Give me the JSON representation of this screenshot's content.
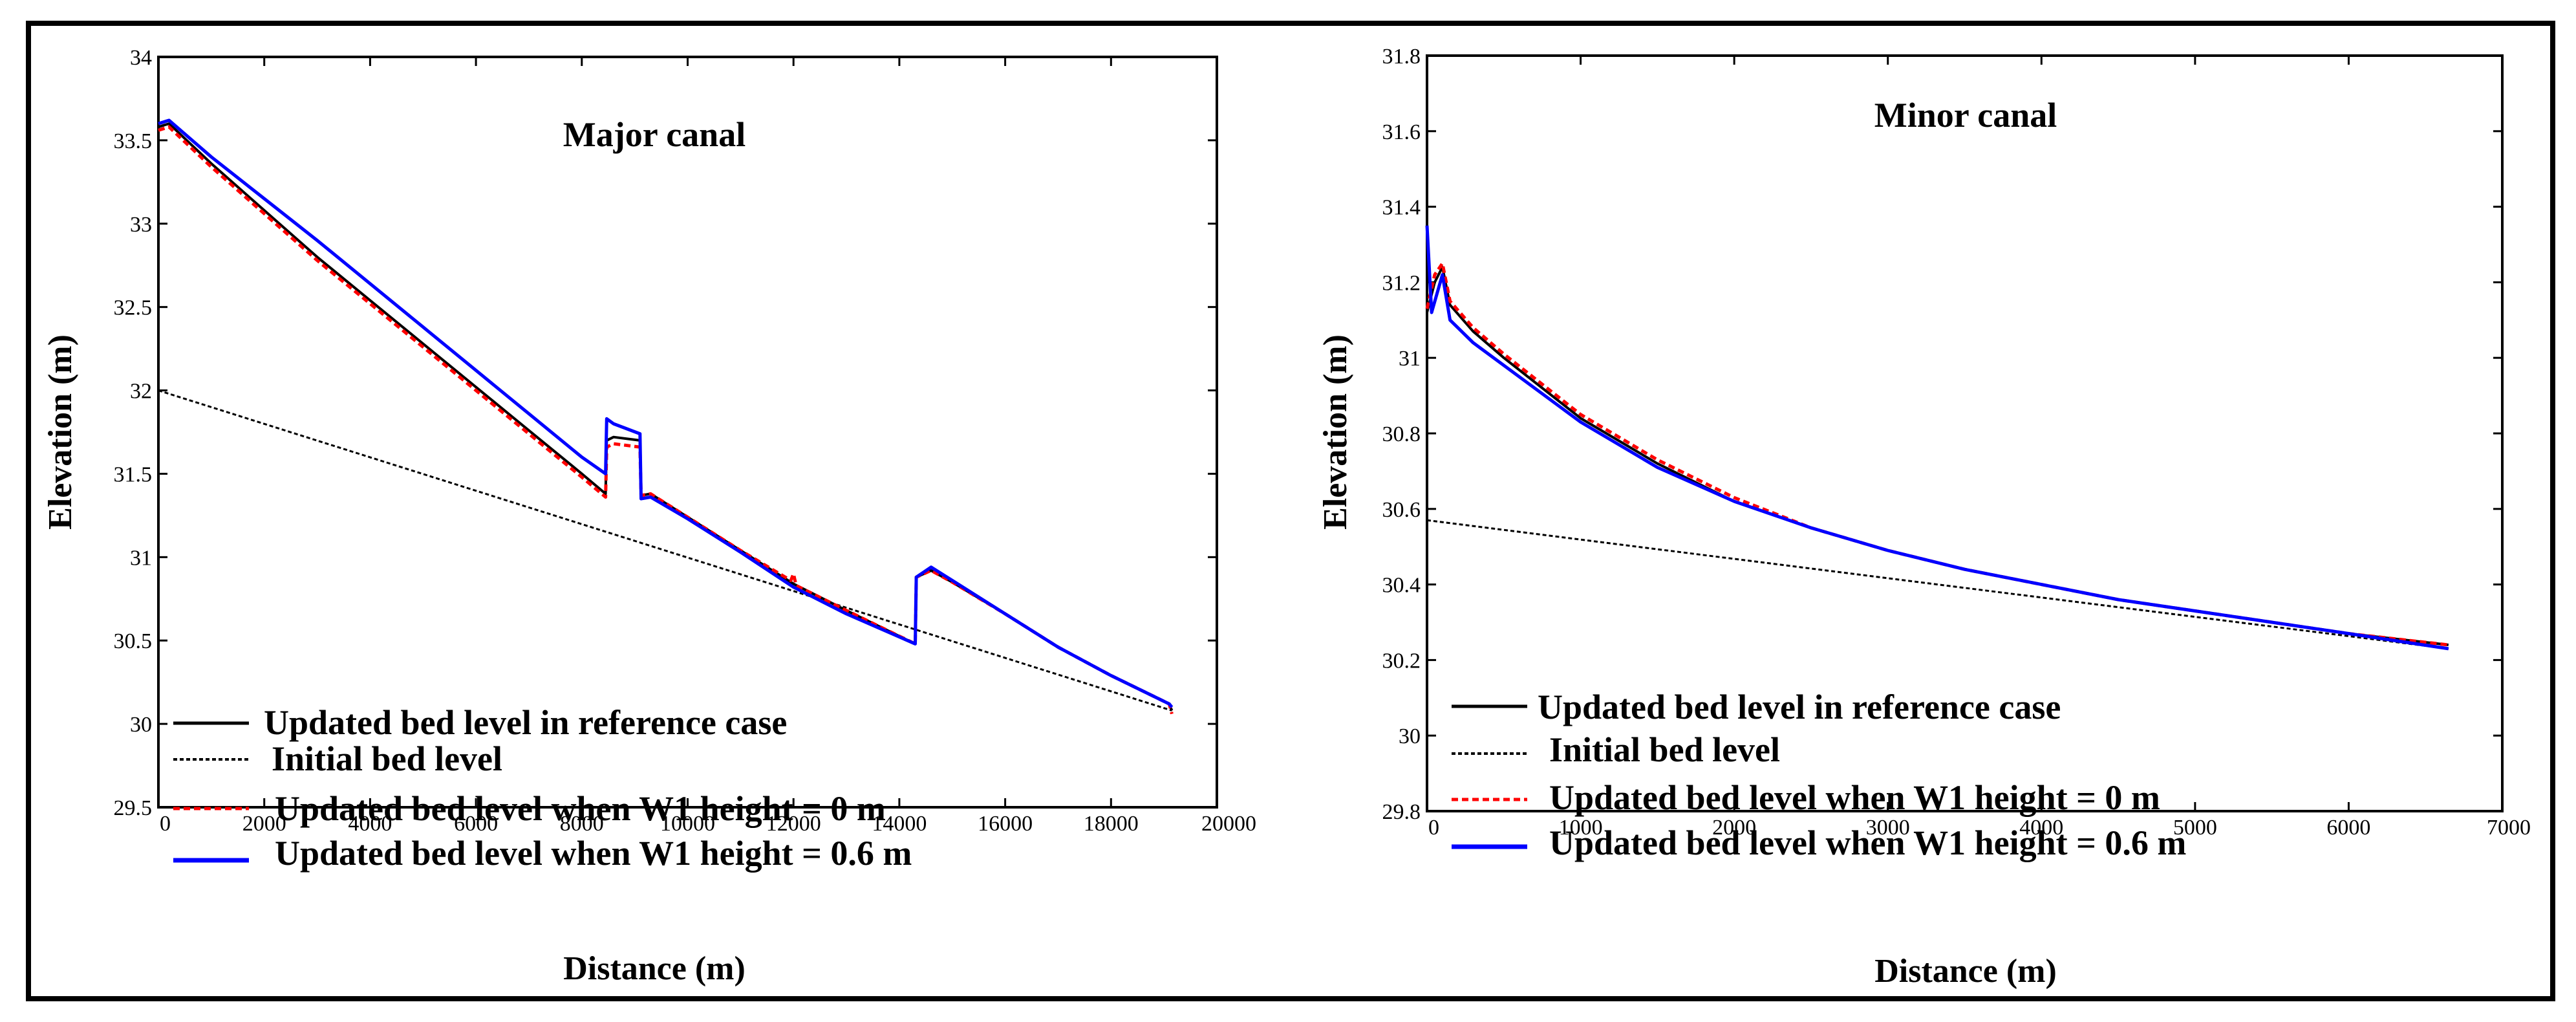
{
  "chart_data": [
    {
      "type": "line",
      "title": "Major canal",
      "xlabel": "Distance (m)",
      "ylabel": "Elevation (m)",
      "xlim": [
        0,
        20000
      ],
      "ylim": [
        29.5,
        34
      ],
      "xticks": [
        0,
        2000,
        4000,
        6000,
        8000,
        10000,
        12000,
        14000,
        16000,
        18000,
        20000
      ],
      "yticks": [
        29.5,
        30,
        30.5,
        31,
        31.5,
        32,
        32.5,
        33,
        33.5,
        34
      ],
      "legend_position": "bottom-left",
      "series": [
        {
          "name": "Updated bed level in reference case",
          "color": "#000000",
          "style": "solid",
          "x": [
            0,
            200,
            1000,
            2000,
            3000,
            4000,
            5000,
            6000,
            7000,
            8000,
            8450,
            8470,
            8600,
            9100,
            9120,
            9300,
            10000,
            11000,
            12000,
            13000,
            14300,
            14320,
            14600,
            15000,
            16000,
            17000,
            18000,
            19100,
            19150
          ],
          "y": [
            33.58,
            33.6,
            33.36,
            33.08,
            32.8,
            32.54,
            32.28,
            32.02,
            31.76,
            31.5,
            31.38,
            31.7,
            31.72,
            31.7,
            31.37,
            31.38,
            31.24,
            31.04,
            30.84,
            30.68,
            30.48,
            30.88,
            30.92,
            30.85,
            30.66,
            30.46,
            30.29,
            30.12,
            30.08
          ]
        },
        {
          "name": "Initial bed level",
          "color": "#000000",
          "style": "dotted",
          "x": [
            0,
            19150
          ],
          "y": [
            32.0,
            30.08
          ]
        },
        {
          "name": "Updated bed level when W1 height = 0 m",
          "color": "#ff0000",
          "style": "dashed",
          "x": [
            0,
            200,
            1000,
            2000,
            3000,
            4000,
            5000,
            6000,
            7000,
            8000,
            8450,
            8470,
            8600,
            9100,
            9120,
            9300,
            10000,
            11000,
            11950,
            12000,
            12050,
            13000,
            14300,
            14320,
            14600,
            15000,
            16000,
            17000,
            18000,
            19100,
            19150
          ],
          "y": [
            33.56,
            33.58,
            33.34,
            33.06,
            32.78,
            32.52,
            32.26,
            32.0,
            31.74,
            31.48,
            31.36,
            31.66,
            31.68,
            31.66,
            31.37,
            31.38,
            31.24,
            31.04,
            30.86,
            30.9,
            30.83,
            30.68,
            30.48,
            30.88,
            30.92,
            30.85,
            30.66,
            30.46,
            30.29,
            30.12,
            30.06
          ]
        },
        {
          "name": "Updated bed level when W1 height = 0.6 m",
          "color": "#0000ff",
          "style": "solid",
          "x": [
            0,
            200,
            1000,
            2000,
            3000,
            4000,
            5000,
            6000,
            7000,
            8000,
            8450,
            8470,
            8600,
            9100,
            9120,
            9300,
            10000,
            11000,
            12000,
            13000,
            14300,
            14320,
            14600,
            15000,
            16000,
            17000,
            18000,
            19100,
            19150
          ],
          "y": [
            33.6,
            33.62,
            33.4,
            33.15,
            32.9,
            32.64,
            32.38,
            32.12,
            31.86,
            31.6,
            31.5,
            31.83,
            31.8,
            31.74,
            31.35,
            31.36,
            31.23,
            31.03,
            30.82,
            30.66,
            30.48,
            30.88,
            30.94,
            30.86,
            30.66,
            30.46,
            30.29,
            30.12,
            30.1
          ]
        }
      ]
    },
    {
      "type": "line",
      "title": "Minor canal",
      "xlabel": "Distance (m)",
      "ylabel": "Elevation (m)",
      "xlim": [
        0,
        7000
      ],
      "ylim": [
        29.8,
        31.8
      ],
      "xticks": [
        0,
        1000,
        2000,
        3000,
        4000,
        5000,
        6000,
        7000
      ],
      "yticks": [
        29.8,
        30,
        30.2,
        30.4,
        30.6,
        30.8,
        31,
        31.2,
        31.4,
        31.6,
        31.8
      ],
      "legend_position": "bottom-left",
      "series": [
        {
          "name": "Updated bed level in reference case",
          "color": "#000000",
          "style": "solid",
          "x": [
            0,
            50,
            100,
            150,
            300,
            500,
            1000,
            1500,
            2000,
            2500,
            3000,
            3500,
            4000,
            4500,
            5000,
            5500,
            6000,
            6650
          ],
          "y": [
            31.12,
            31.2,
            31.24,
            31.14,
            31.07,
            31.0,
            30.84,
            30.72,
            30.62,
            30.55,
            30.49,
            30.44,
            30.4,
            30.36,
            30.33,
            30.3,
            30.27,
            30.24
          ]
        },
        {
          "name": "Initial bed level",
          "color": "#000000",
          "style": "dotted",
          "x": [
            0,
            6650
          ],
          "y": [
            30.57,
            30.23
          ]
        },
        {
          "name": "Updated bed level when W1 height = 0 m",
          "color": "#ff0000",
          "style": "dashed",
          "x": [
            0,
            50,
            100,
            150,
            300,
            500,
            1000,
            1500,
            2000,
            2500,
            3000,
            3500,
            4000,
            4500,
            5000,
            5500,
            6000,
            6650
          ],
          "y": [
            31.13,
            31.22,
            31.25,
            31.15,
            31.08,
            31.01,
            30.85,
            30.73,
            30.63,
            30.55,
            30.49,
            30.44,
            30.4,
            30.36,
            30.33,
            30.3,
            30.27,
            30.24
          ]
        },
        {
          "name": "Updated bed level when W1 height = 0.6 m",
          "color": "#0000ff",
          "style": "solid",
          "x": [
            0,
            30,
            100,
            150,
            300,
            500,
            1000,
            1500,
            2000,
            2500,
            3000,
            3500,
            4000,
            4500,
            5000,
            5500,
            6000,
            6650
          ],
          "y": [
            31.35,
            31.12,
            31.22,
            31.1,
            31.04,
            30.98,
            30.83,
            30.71,
            30.62,
            30.55,
            30.49,
            30.44,
            30.4,
            30.36,
            30.33,
            30.3,
            30.27,
            30.23
          ]
        }
      ]
    }
  ]
}
